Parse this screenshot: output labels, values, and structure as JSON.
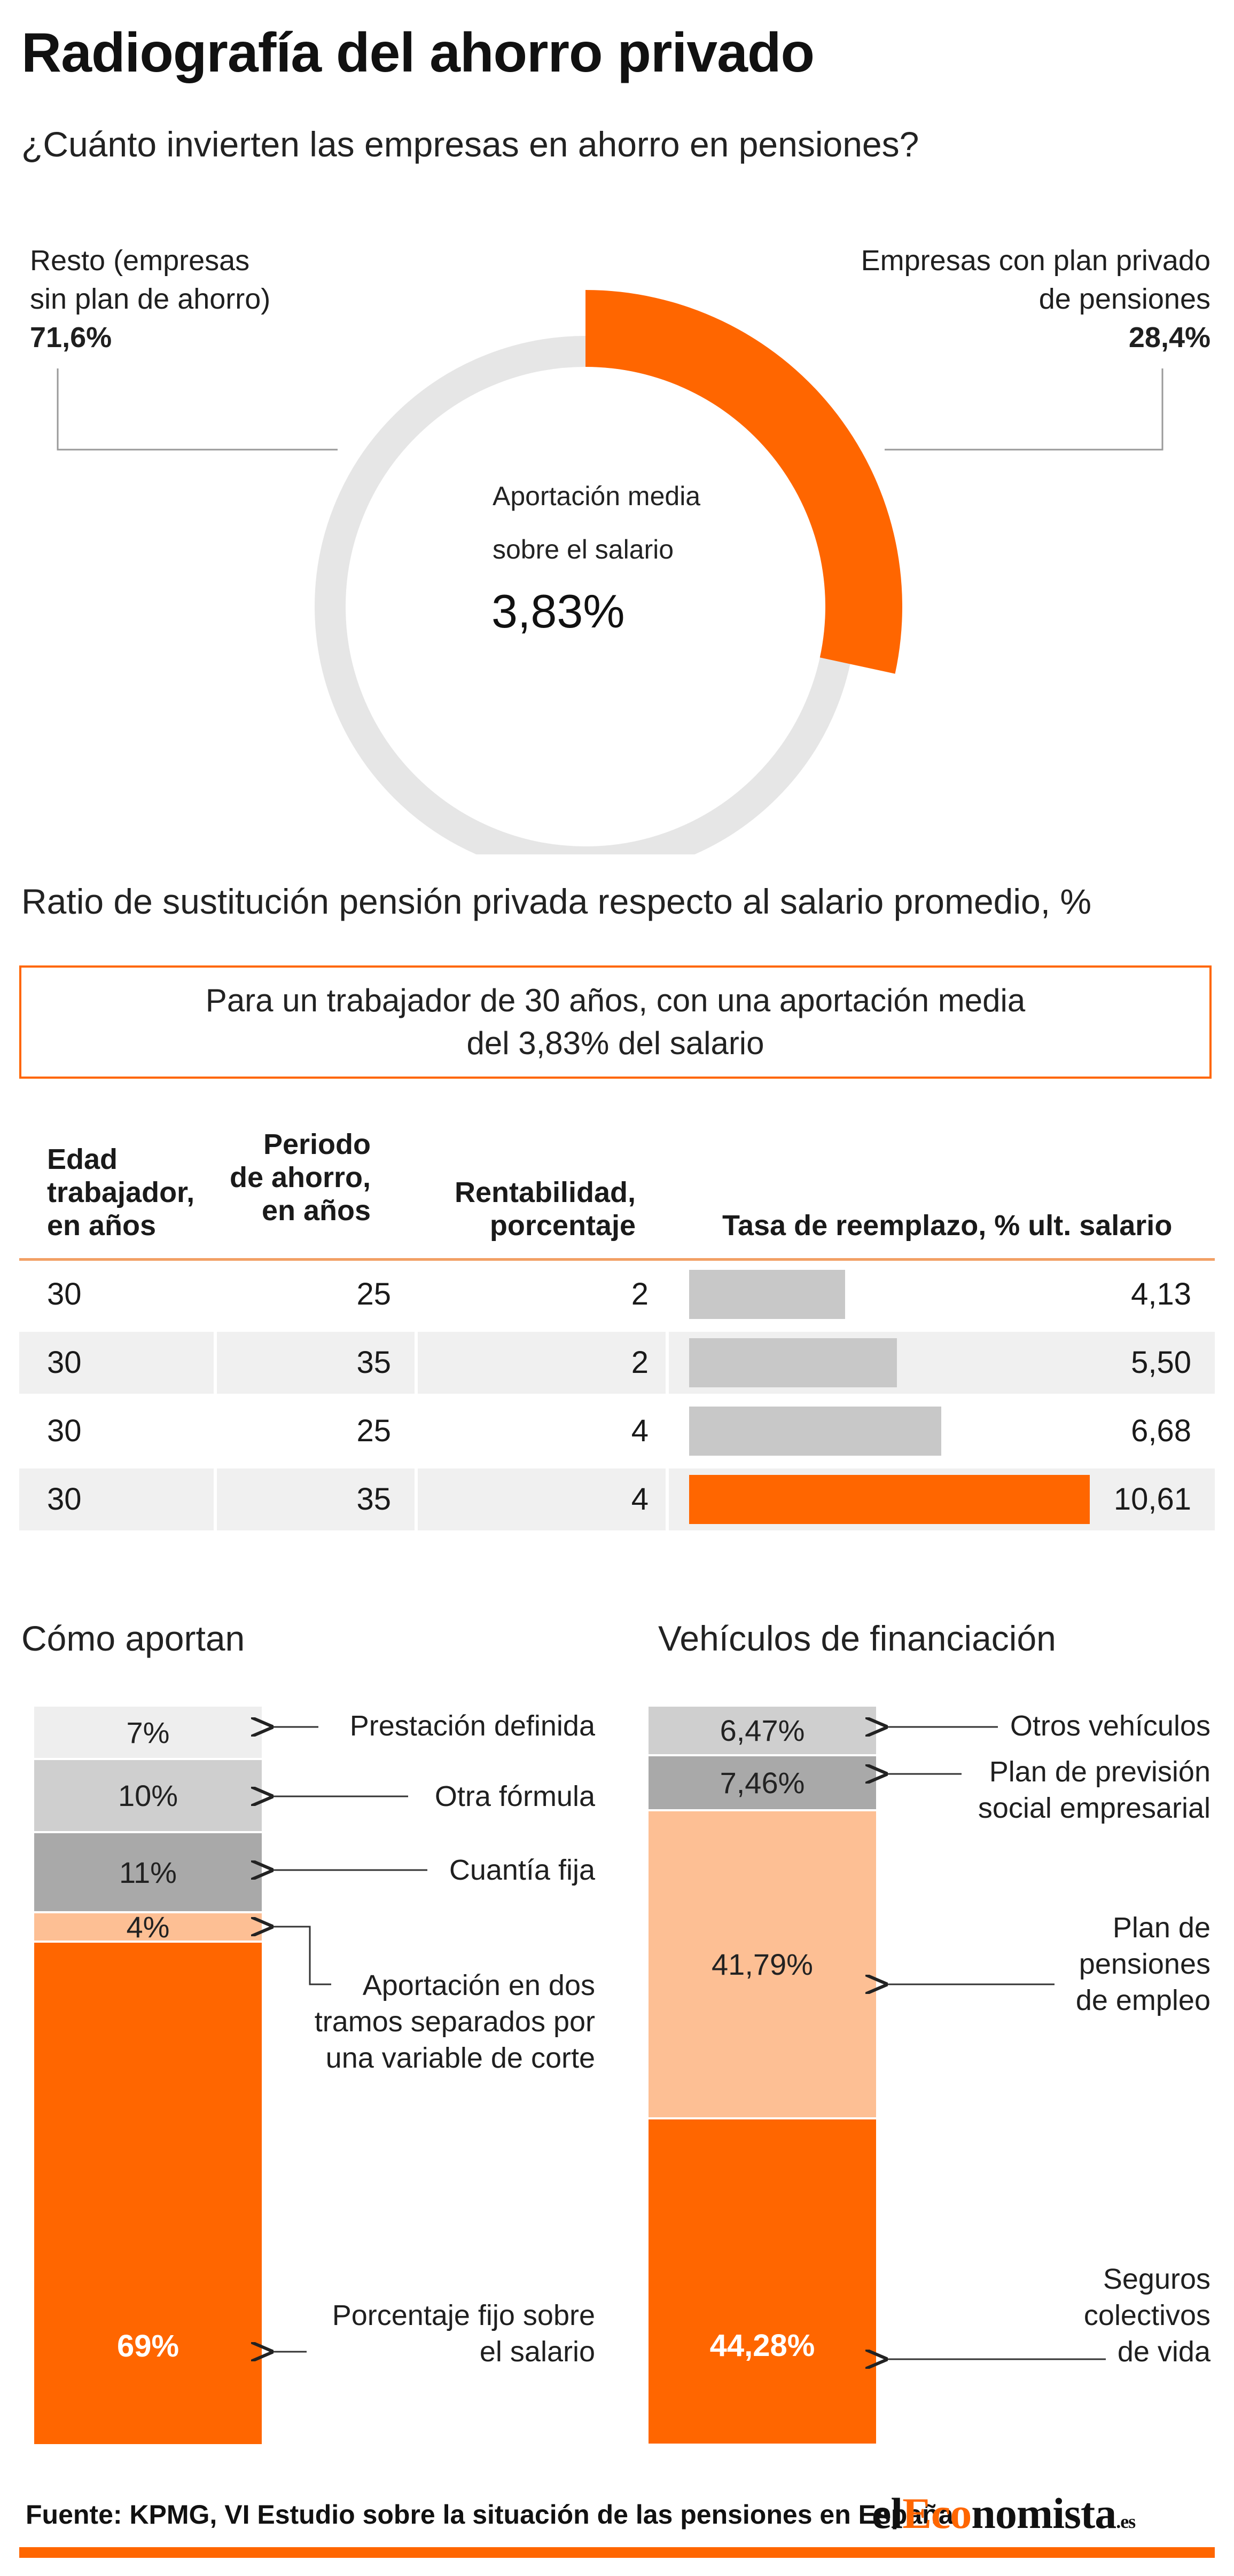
{
  "title": "Radiografía del ahorro privado",
  "subtitle": "¿Cuánto invierten las empresas en ahorro en pensiones?",
  "donut": {
    "left_label": [
      "Resto (empresas",
      "sin plan de ahorro)"
    ],
    "left_value": "71,6%",
    "right_label": [
      "Empresas con plan privado",
      "de pensiones"
    ],
    "right_value": "28,4%",
    "center_label": [
      "Aportación media",
      "sobre el salario"
    ],
    "center_value": "3,83%"
  },
  "section2": {
    "title": "Ratio de sustitución pensión privada respecto al salario promedio, %",
    "note": [
      "Para un trabajador de 30 años, con una aportación media",
      "del 3,83% del salario"
    ],
    "headers": {
      "age": [
        "Edad",
        "trabajador,",
        "en años"
      ],
      "period": [
        "Periodo",
        "de ahorro,",
        "en años"
      ],
      "return": [
        "Rentabilidad,",
        "porcentaje"
      ],
      "rate": "Tasa de reemplazo, % ult. salario"
    }
  },
  "section3": {
    "left_title": "Cómo aportan",
    "right_title": "Vehículos de financiación",
    "left_labels": {
      "defined": "Prestación definida",
      "other": "Otra fórmula",
      "fixed": "Cuantía fija",
      "two_tranche": [
        "Aportación en dos",
        "tramos separados por",
        "una variable de corte"
      ],
      "pct": [
        "Porcentaje fijo sobre",
        "el salario"
      ]
    },
    "right_labels": {
      "others": "Otros vehículos",
      "ppse": [
        "Plan de previsión",
        "social empresarial"
      ],
      "ppe": [
        "Plan de",
        "pensiones",
        "de empleo"
      ],
      "scv": [
        "Seguros",
        "colectivos",
        "de vida"
      ]
    }
  },
  "source": "Fuente: KPMG, VI Estudio sobre la situación de las pensiones en España",
  "logo": {
    "pre": "el",
    "accent": "Eco",
    "post": "nomista",
    "suffix": ".es"
  },
  "colors": {
    "accent": "#ff6600",
    "light_orange": "#fdbf94",
    "ring_gray": "#e6e6e6",
    "bar_gray": "#c8c8c8",
    "seg_gray_1": "#eeeeee",
    "seg_gray_2": "#cfcfcf",
    "seg_gray_3": "#a9a9a9",
    "row_bg": "#f0f0f0"
  },
  "chart_data": [
    {
      "type": "pie",
      "title": "¿Cuánto invierten las empresas en ahorro en pensiones?",
      "categories": [
        "Empresas con plan privado de pensiones",
        "Resto (empresas sin plan de ahorro)"
      ],
      "values": [
        28.4,
        71.6
      ],
      "value_labels": [
        "28,4%",
        "71,6%"
      ],
      "center_value": 3.83
    },
    {
      "type": "table",
      "title": "Ratio de sustitución pensión privada respecto al salario promedio, %",
      "columns": [
        "Edad trabajador, en años",
        "Periodo de ahorro, en años",
        "Rentabilidad, porcentaje",
        "Tasa de reemplazo, % ult. salario"
      ],
      "rows": [
        {
          "age": "30",
          "period": "25",
          "return": "2",
          "rate": 4.13,
          "rate_label": "4,13",
          "highlight": false
        },
        {
          "age": "30",
          "period": "35",
          "return": "2",
          "rate": 5.5,
          "rate_label": "5,50",
          "highlight": false
        },
        {
          "age": "30",
          "period": "25",
          "return": "4",
          "rate": 6.68,
          "rate_label": "6,68",
          "highlight": false
        },
        {
          "age": "30",
          "period": "35",
          "return": "4",
          "rate": 10.61,
          "rate_label": "10,61",
          "highlight": true
        }
      ]
    },
    {
      "type": "bar",
      "title": "Cómo aportan",
      "stacked": true,
      "categories": [
        "Prestación definida",
        "Otra fórmula",
        "Cuantía fija",
        "Aportación en dos tramos separados por una variable de corte",
        "Porcentaje fijo sobre el salario"
      ],
      "values": [
        7,
        10,
        11,
        4,
        69
      ],
      "value_labels": [
        "7%",
        "10%",
        "11%",
        "4%",
        "69%"
      ]
    },
    {
      "type": "bar",
      "title": "Vehículos de financiación",
      "stacked": true,
      "categories": [
        "Otros vehículos",
        "Plan de previsión social empresarial",
        "Plan de pensiones de empleo",
        "Seguros colectivos de vida"
      ],
      "values": [
        6.47,
        7.46,
        41.79,
        44.28
      ],
      "value_labels": [
        "6,47%",
        "7,46%",
        "41,79%",
        "44,28%"
      ]
    }
  ]
}
